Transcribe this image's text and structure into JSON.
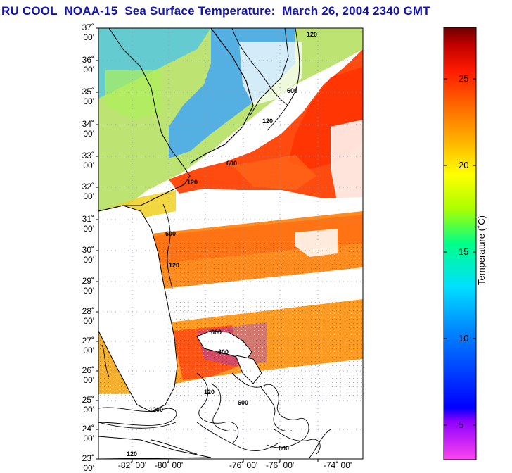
{
  "title": "RU COOL  NOAA-15  Sea Surface Temperature:  March 26, 2004 2340 GMT",
  "map": {
    "lat_labels": [
      "37˚ 00'",
      "36˚ 00'",
      "35˚ 00'",
      "34˚ 00'",
      "33˚ 00'",
      "32˚ 00'",
      "31˚ 00'",
      "30˚ 00'",
      "29˚ 00'",
      "28˚ 00'",
      "27˚ 00'",
      "26˚ 00'",
      "25˚ 00'",
      "24˚ 00'",
      "23˚ 00'"
    ],
    "lon_labels": [
      "-82˚ 00'",
      "-80˚ 00'",
      "-76˚ 00'",
      "-76˚ 00'",
      "-74˚ 00'"
    ],
    "contour_labels": [
      "120",
      "600",
      "120",
      "600",
      "120",
      "600",
      "120",
      "600",
      "600",
      "1200",
      "600",
      "120",
      "120",
      "600"
    ]
  },
  "colorbar": {
    "title": "Temperature (˚C)",
    "tick_labels": [
      "25",
      "20",
      "15",
      "10",
      "5"
    ],
    "colors": [
      "#ff00ff",
      "#9900ff",
      "#0000ff",
      "#0088ff",
      "#00ddff",
      "#00ff99",
      "#99ff00",
      "#ffff00",
      "#ffbb00",
      "#ff7700",
      "#ff2200",
      "#cc0000",
      "#7a0000"
    ]
  },
  "palette": {
    "land": "#ffffff",
    "cloud": "#ffffff",
    "grid": "#8899aa",
    "coast": "#000000",
    "title_color": "#1414b4"
  }
}
